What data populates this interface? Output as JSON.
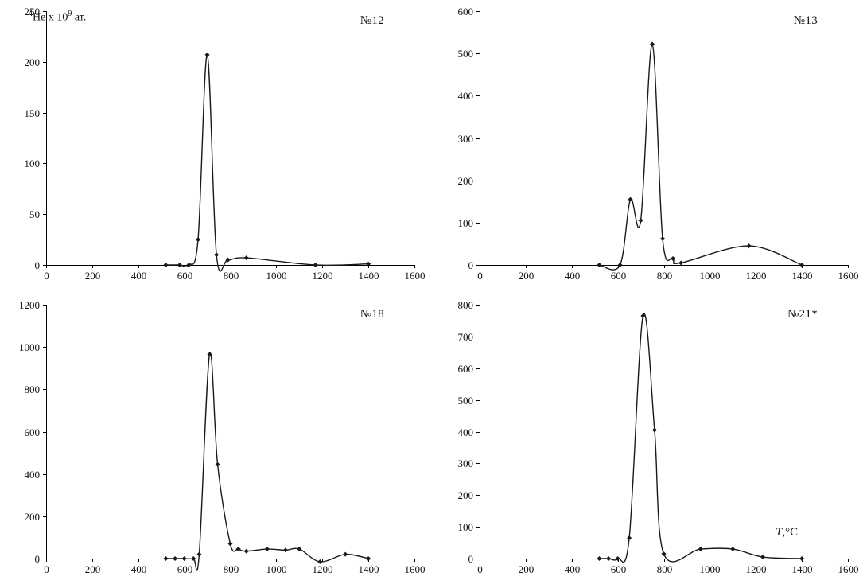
{
  "figure": {
    "ylabel_parts": {
      "sup1": "4",
      "main1": "He x 10",
      "sup2": "9",
      "main2": " ат."
    },
    "temp_label": {
      "t": "T",
      "rest": ",°C"
    }
  },
  "chart_data": [
    {
      "type": "line",
      "label": "№12",
      "ylabel": "4He x 10^9 ат.",
      "xlabel": "",
      "xlim": [
        0,
        1600
      ],
      "ylim": [
        0,
        250
      ],
      "xstep": 200,
      "ystep": 50,
      "grid": false,
      "x": [
        520,
        580,
        620,
        660,
        700,
        740,
        790,
        870,
        1170,
        1400
      ],
      "y": [
        0,
        0,
        0,
        25,
        207,
        10,
        5,
        7,
        0,
        1
      ]
    },
    {
      "type": "line",
      "label": "№13",
      "ylabel": "",
      "xlabel": "",
      "xlim": [
        0,
        1600
      ],
      "ylim": [
        0,
        600
      ],
      "xstep": 200,
      "ystep": 100,
      "grid": false,
      "x": [
        520,
        610,
        655,
        700,
        750,
        795,
        840,
        875,
        1170,
        1400
      ],
      "y": [
        0,
        0,
        155,
        105,
        522,
        62,
        15,
        5,
        45,
        0
      ]
    },
    {
      "type": "line",
      "label": "№18",
      "ylabel": "",
      "xlabel": "",
      "xlim": [
        0,
        1600
      ],
      "ylim": [
        0,
        1200
      ],
      "xstep": 200,
      "ystep": 200,
      "grid": false,
      "x": [
        520,
        560,
        600,
        640,
        665,
        710,
        745,
        800,
        835,
        870,
        960,
        1040,
        1100,
        1190,
        1300,
        1400
      ],
      "y": [
        0,
        0,
        0,
        0,
        20,
        965,
        445,
        70,
        45,
        35,
        45,
        40,
        45,
        -15,
        20,
        0
      ]
    },
    {
      "type": "line",
      "label": "№21*",
      "ylabel": "",
      "xlabel": "T,°C",
      "xlim": [
        0,
        1600
      ],
      "ylim": [
        0,
        800
      ],
      "xstep": 200,
      "ystep": 100,
      "grid": false,
      "x": [
        520,
        560,
        600,
        650,
        710,
        760,
        800,
        960,
        1100,
        1230,
        1400
      ],
      "y": [
        0,
        0,
        0,
        65,
        765,
        405,
        15,
        30,
        30,
        5,
        0
      ]
    }
  ]
}
